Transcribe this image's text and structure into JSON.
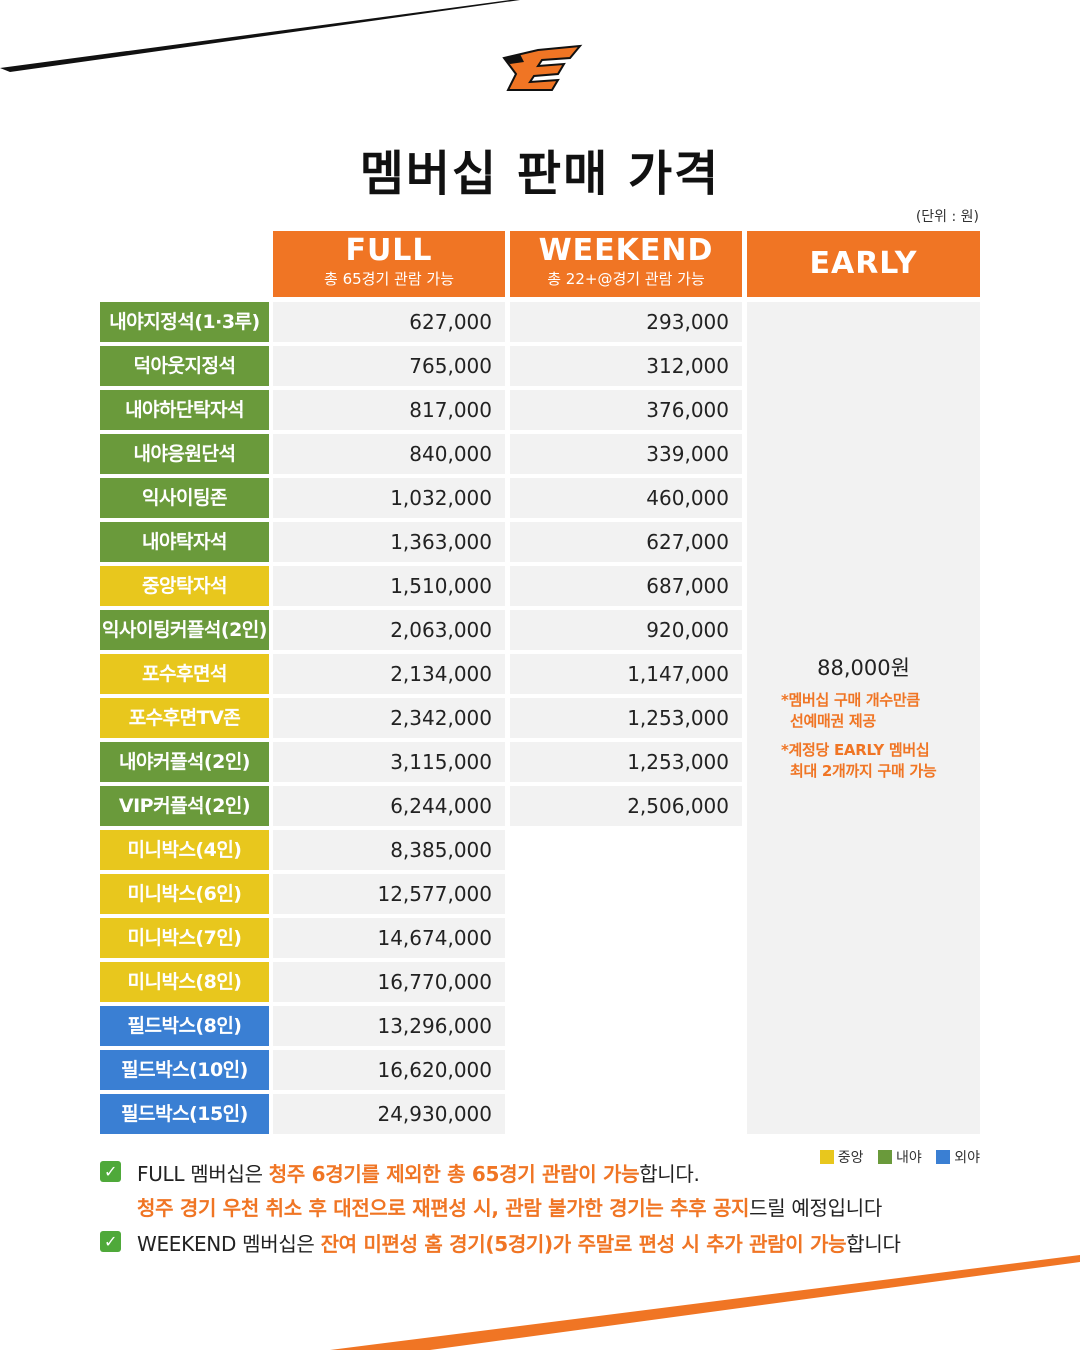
{
  "title": "멤버십 판매 가격",
  "unit_label": "(단위 : 원)",
  "columns": {
    "full": {
      "name": "FULL",
      "sub": "총 65경기 관람 가능"
    },
    "weekend": {
      "name": "WEEKEND",
      "sub": "총 22+@경기 관람 가능"
    },
    "early": {
      "name": "EARLY"
    }
  },
  "rows": [
    {
      "seat": "내야지정석(1·3루)",
      "zone": "green",
      "full": "627,000",
      "weekend": "293,000"
    },
    {
      "seat": "덕아웃지정석",
      "zone": "green",
      "full": "765,000",
      "weekend": "312,000"
    },
    {
      "seat": "내야하단탁자석",
      "zone": "green",
      "full": "817,000",
      "weekend": "376,000"
    },
    {
      "seat": "내야응원단석",
      "zone": "green",
      "full": "840,000",
      "weekend": "339,000"
    },
    {
      "seat": "익사이팅존",
      "zone": "green",
      "full": "1,032,000",
      "weekend": "460,000"
    },
    {
      "seat": "내야탁자석",
      "zone": "green",
      "full": "1,363,000",
      "weekend": "627,000"
    },
    {
      "seat": "중앙탁자석",
      "zone": "yellow",
      "full": "1,510,000",
      "weekend": "687,000"
    },
    {
      "seat": "익사이팅커플석(2인)",
      "zone": "green",
      "full": "2,063,000",
      "weekend": "920,000"
    },
    {
      "seat": "포수후면석",
      "zone": "yellow",
      "full": "2,134,000",
      "weekend": "1,147,000"
    },
    {
      "seat": "포수후면TV존",
      "zone": "yellow",
      "full": "2,342,000",
      "weekend": "1,253,000"
    },
    {
      "seat": "내야커플석(2인)",
      "zone": "green",
      "full": "3,115,000",
      "weekend": "1,253,000"
    },
    {
      "seat": "VIP커플석(2인)",
      "zone": "green",
      "full": "6,244,000",
      "weekend": "2,506,000"
    },
    {
      "seat": "미니박스(4인)",
      "zone": "yellow",
      "full": "8,385,000",
      "weekend": null
    },
    {
      "seat": "미니박스(6인)",
      "zone": "yellow",
      "full": "12,577,000",
      "weekend": null
    },
    {
      "seat": "미니박스(7인)",
      "zone": "yellow",
      "full": "14,674,000",
      "weekend": null
    },
    {
      "seat": "미니박스(8인)",
      "zone": "yellow",
      "full": "16,770,000",
      "weekend": null
    },
    {
      "seat": "필드박스(8인)",
      "zone": "blue",
      "full": "13,296,000",
      "weekend": null
    },
    {
      "seat": "필드박스(10인)",
      "zone": "blue",
      "full": "16,620,000",
      "weekend": null
    },
    {
      "seat": "필드박스(15인)",
      "zone": "blue",
      "full": "24,930,000",
      "weekend": null
    }
  ],
  "early": {
    "price": "88,000원",
    "note1_line1": "*멤버십 구매 개수만큼",
    "note1_line2": "선예매권 제공",
    "note2_line1": "*계정당 EARLY 멤버십",
    "note2_line2": "최대 2개까지 구매 가능"
  },
  "legend": {
    "center": "중앙",
    "infield": "내야",
    "outfield": "외야"
  },
  "zone_colors": {
    "green": "#6a9a3b",
    "yellow": "#e8c71d",
    "blue": "#3a7fd3",
    "accent": "#f07524"
  },
  "notes": {
    "n1_a": "FULL 멤버십은 ",
    "n1_b": "청주 6경기를 제외한 총 65경기 관람이 가능",
    "n1_c": "합니다.",
    "n1b_a": "청주 경기 우천 취소 후 대전으로 재편성 시, 관람 불가한 경기는 추후 공지",
    "n1b_b": "드릴 예정입니다",
    "n2_a": "WEEKEND 멤버십은 ",
    "n2_b": "잔여 미편성 홈 경기(5경기)가 주말로 편성 시 추가 관람이 가능",
    "n2_c": "합니다"
  },
  "icons": {
    "logo": "eagle-e-logo",
    "check": "check-icon"
  }
}
